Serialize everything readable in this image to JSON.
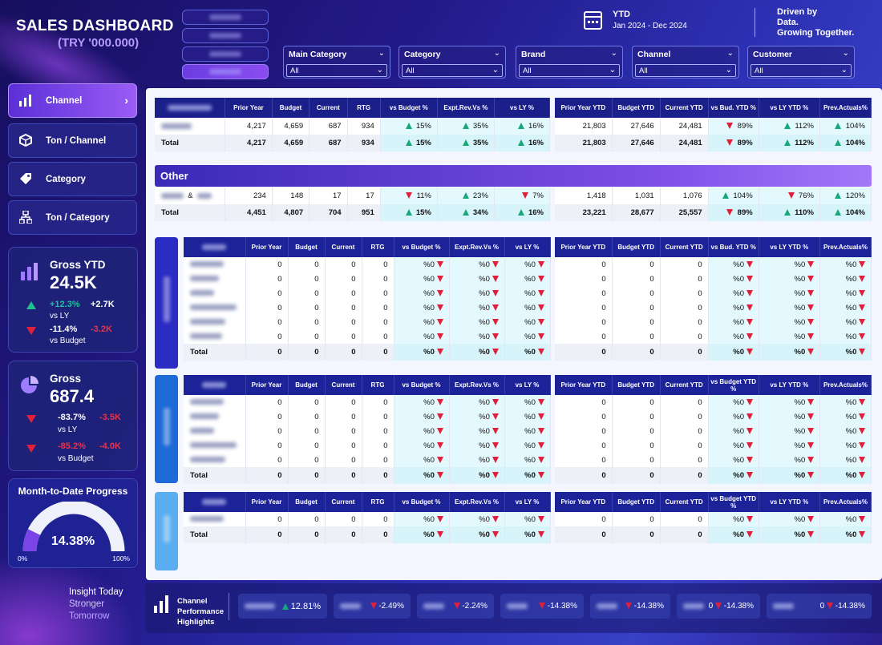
{
  "header": {
    "title": "SALES DASHBOARD",
    "subtitle": "(TRY '000.000)",
    "period_label": "YTD",
    "period_range": "Jan 2024 - Dec 2024",
    "slogan": [
      "Driven by",
      "Data.",
      "Growing Together."
    ]
  },
  "filters": [
    {
      "label": "Main Category",
      "value": "All"
    },
    {
      "label": "Category",
      "value": "All"
    },
    {
      "label": "Brand",
      "value": "All"
    },
    {
      "label": "Channel",
      "value": "All"
    },
    {
      "label": "Customer",
      "value": "All"
    }
  ],
  "nav": [
    {
      "label": "Channel",
      "icon": "bar-chart-icon",
      "active": true
    },
    {
      "label": "Ton / Channel",
      "icon": "box-icon"
    },
    {
      "label": "Category",
      "icon": "tag-icon"
    },
    {
      "label": "Ton / Category",
      "icon": "hierarchy-icon"
    }
  ],
  "kpi_gross_ytd": {
    "title": "Gross YTD",
    "value": "24.5K",
    "ly_pct": "+12.3%",
    "ly_abs": "+2.7K",
    "ly_label": "vs LY",
    "bud_pct": "-11.4%",
    "bud_abs": "-3.2K",
    "bud_label": "vs Budget"
  },
  "kpi_gross": {
    "title": "Gross",
    "value": "687.4",
    "ly_pct": "-83.7%",
    "ly_abs": "-3.5K",
    "ly_label": "vs LY",
    "bud_pct": "-85.2%",
    "bud_abs": "-4.0K",
    "bud_label": "vs Budget"
  },
  "mtd": {
    "title": "Month-to-Date Progress",
    "value": "14.38%",
    "progress": 0.1438,
    "min": "0%",
    "max": "100%"
  },
  "sidebar_slogan": [
    "Insight Today",
    "Stronger",
    "Tomorrow"
  ],
  "cols_a": [
    "Prior Year",
    "Budget",
    "Current",
    "RTG",
    "vs Budget %",
    "Expt.Rev.Vs %",
    "vs LY %"
  ],
  "cols_b": [
    "Prior Year YTD",
    "Budget YTD",
    "Current YTD",
    "vs Bud. YTD %",
    "vs LY YTD %",
    "Prev.Actuals%"
  ],
  "cols_b2": [
    "Prior Year YTD",
    "Budget YTD",
    "Current YTD",
    "vs Budget YTD %",
    "vs LY YTD %",
    "Prev.Actuals%"
  ],
  "top_table": {
    "rows": [
      {
        "a": [
          "4,217",
          "4,659",
          "687",
          "934"
        ],
        "ap": [
          [
            "up",
            "15%"
          ],
          [
            "up",
            "35%"
          ],
          [
            "up",
            "16%"
          ]
        ],
        "b": [
          "21,803",
          "27,646",
          "24,481"
        ],
        "bp": [
          [
            "dn",
            "89%"
          ],
          [
            "up",
            "112%"
          ],
          [
            "up",
            "104%"
          ]
        ]
      }
    ],
    "total": {
      "label": "Total",
      "a": [
        "4,217",
        "4,659",
        "687",
        "934"
      ],
      "ap": [
        [
          "up",
          "15%"
        ],
        [
          "up",
          "35%"
        ],
        [
          "up",
          "16%"
        ]
      ],
      "b": [
        "21,803",
        "27,646",
        "24,481"
      ],
      "bp": [
        [
          "dn",
          "89%"
        ],
        [
          "up",
          "112%"
        ],
        [
          "up",
          "104%"
        ]
      ]
    }
  },
  "other": {
    "title": "Other",
    "amp": "&",
    "row": {
      "a": [
        "234",
        "148",
        "17",
        "17"
      ],
      "ap": [
        [
          "dn",
          "11%"
        ],
        [
          "up",
          "23%"
        ],
        [
          "dn",
          "7%"
        ]
      ],
      "b": [
        "1,418",
        "1,031",
        "1,076"
      ],
      "bp": [
        [
          "up",
          "104%"
        ],
        [
          "dn",
          "76%"
        ],
        [
          "up",
          "120%"
        ]
      ]
    },
    "total": {
      "label": "Total",
      "a": [
        "4,451",
        "4,807",
        "704",
        "951"
      ],
      "ap": [
        [
          "up",
          "15%"
        ],
        [
          "up",
          "34%"
        ],
        [
          "up",
          "16%"
        ]
      ],
      "b": [
        "23,221",
        "28,677",
        "25,557"
      ],
      "bp": [
        [
          "dn",
          "89%"
        ],
        [
          "up",
          "110%"
        ],
        [
          "up",
          "104%"
        ]
      ]
    }
  },
  "zero": {
    "n": "0",
    "pct": "%0",
    "total": "Total"
  },
  "footer": {
    "label": [
      "Channel",
      "Performance",
      "Highlights"
    ],
    "items": [
      {
        "dir": "up",
        "value": "12.81%"
      },
      {
        "dir": "dn",
        "value": "-2.49%"
      },
      {
        "dir": "dn",
        "value": "-2.24%"
      },
      {
        "dir": "dn",
        "value": "-14.38%"
      },
      {
        "dir": "dn",
        "value": "-14.38%"
      },
      {
        "dir": "dn",
        "value": "-14.38%",
        "prefix": "0"
      },
      {
        "dir": "dn",
        "value": "-14.38%",
        "prefix": "0"
      }
    ]
  },
  "colors": {
    "accent": "#7c4dff",
    "up": "#17a878",
    "down": "#e0203a",
    "header": "#1b1f8a"
  }
}
